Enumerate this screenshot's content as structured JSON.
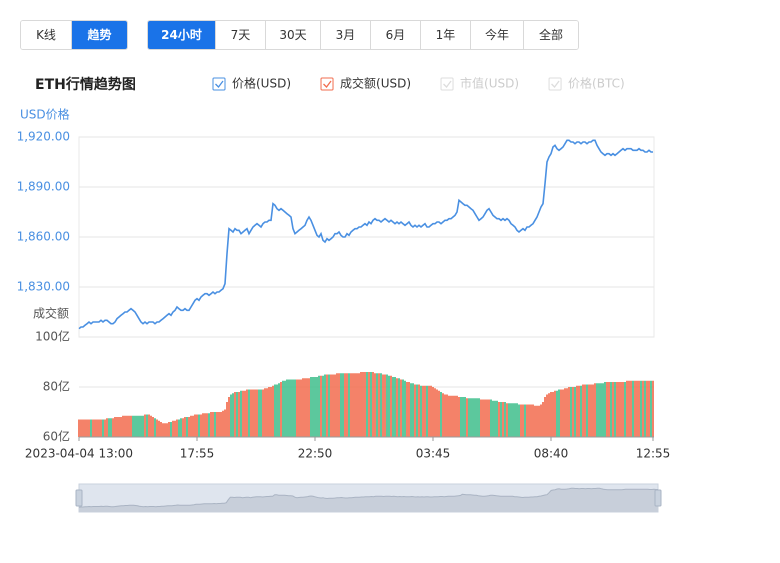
{
  "toolbar": {
    "view_tabs": [
      {
        "label": "K线",
        "active": false
      },
      {
        "label": "趋势",
        "active": true
      }
    ],
    "range_tabs": [
      {
        "label": "24小时",
        "active": true
      },
      {
        "label": "7天",
        "active": false
      },
      {
        "label": "30天",
        "active": false
      },
      {
        "label": "3月",
        "active": false
      },
      {
        "label": "6月",
        "active": false
      },
      {
        "label": "1年",
        "active": false
      },
      {
        "label": "今年",
        "active": false
      },
      {
        "label": "全部",
        "active": false
      }
    ]
  },
  "chart_data": {
    "type": "line",
    "title": "ETH行情趋势图",
    "ylabel": "USD价格",
    "y2label": "成交额",
    "categories": [
      "2023-04-04 13:00",
      null,
      null,
      null,
      null,
      null,
      null,
      null,
      null,
      null,
      null,
      null,
      null,
      null,
      null,
      null,
      null,
      null,
      null,
      null,
      null,
      null,
      null,
      null,
      null,
      null,
      null,
      null,
      null,
      null,
      null,
      null,
      null,
      null,
      null,
      null,
      null,
      null,
      null,
      null,
      null,
      null,
      null,
      null,
      null,
      null,
      null,
      null,
      null,
      null,
      null,
      null,
      null,
      null,
      null,
      null,
      null,
      null,
      null,
      "17:55",
      null,
      null,
      null,
      null,
      null,
      null,
      null,
      null,
      null,
      null,
      null,
      null,
      null,
      null,
      null,
      null,
      null,
      null,
      null,
      null,
      null,
      null,
      null,
      null,
      null,
      null,
      null,
      null,
      null,
      null,
      null,
      null,
      null,
      null,
      null,
      null,
      null,
      null,
      null,
      null,
      null,
      null,
      null,
      null,
      null,
      null,
      null,
      null,
      null,
      null,
      null,
      null,
      null,
      null,
      null,
      null,
      null,
      null,
      "22:50",
      null,
      null,
      null,
      null,
      null,
      null,
      null,
      null,
      null,
      null,
      null,
      null,
      null,
      null,
      null,
      null,
      null,
      null,
      null,
      null,
      null,
      null,
      null,
      null,
      null,
      null,
      null,
      null,
      null,
      null,
      null,
      null,
      null,
      null,
      null,
      null,
      null,
      null,
      null,
      null,
      null,
      null,
      null,
      null,
      null,
      null,
      null,
      null,
      null,
      null,
      null,
      null,
      null,
      null,
      null,
      null,
      null,
      null,
      "03:45",
      null,
      null,
      null,
      null,
      null,
      null,
      null,
      null,
      null,
      null,
      null,
      null,
      null,
      null,
      null,
      null,
      null,
      null,
      null,
      null,
      null,
      null,
      null,
      null,
      null,
      null,
      null,
      null,
      null,
      null,
      null,
      null,
      null,
      null,
      null,
      null,
      null,
      null,
      null,
      null,
      null,
      null,
      null,
      null,
      null,
      null,
      null,
      null,
      null,
      null,
      null,
      null,
      null,
      null,
      null,
      null,
      null,
      null,
      "08:40",
      null,
      null,
      null,
      null,
      null,
      null,
      null,
      null,
      null,
      null,
      null,
      null,
      null,
      null,
      null,
      null,
      null,
      null,
      null,
      null,
      null,
      null,
      null,
      null,
      null,
      null,
      null,
      null,
      null,
      null,
      null,
      null,
      null,
      null,
      null,
      null,
      null,
      null,
      null,
      null,
      null,
      null,
      null,
      null,
      null,
      null,
      null,
      null,
      null,
      null,
      "12:55"
    ],
    "series": [
      {
        "name": "价格(USD)",
        "color": "#4a90e2",
        "checked": true,
        "values": [
          1805,
          1806,
          1806,
          1807,
          1808,
          1809,
          1808,
          1809,
          1809,
          1809,
          1809,
          1810,
          1809,
          1810,
          1810,
          1809,
          1808,
          1808,
          1809,
          1811,
          1812,
          1813,
          1814,
          1815,
          1815,
          1816,
          1817,
          1816,
          1815,
          1813,
          1811,
          1809,
          1808,
          1809,
          1808,
          1809,
          1809,
          1809,
          1808,
          1809,
          1809,
          1810,
          1811,
          1812,
          1813,
          1814,
          1813,
          1815,
          1816,
          1818,
          1817,
          1816,
          1816,
          1817,
          1816,
          1816,
          1818,
          1820,
          1822,
          1823,
          1822,
          1824,
          1825,
          1826,
          1826,
          1825,
          1826,
          1827,
          1826,
          1827,
          1827,
          1828,
          1829,
          1832,
          1850,
          1865,
          1864,
          1863,
          1865,
          1864,
          1864,
          1862,
          1863,
          1864,
          1865,
          1862,
          1864,
          1866,
          1867,
          1868,
          1867,
          1866,
          1868,
          1869,
          1869,
          1870,
          1870,
          1880,
          1879,
          1877,
          1876,
          1877,
          1876,
          1875,
          1874,
          1873,
          1872,
          1865,
          1862,
          1863,
          1864,
          1865,
          1866,
          1867,
          1870,
          1872,
          1870,
          1867,
          1864,
          1861,
          1860,
          1862,
          1858,
          1857,
          1859,
          1858,
          1859,
          1860,
          1862,
          1862,
          1863,
          1861,
          1860,
          1860,
          1862,
          1861,
          1863,
          1864,
          1865,
          1865,
          1866,
          1866,
          1867,
          1868,
          1867,
          1869,
          1868,
          1870,
          1871,
          1870,
          1870,
          1869,
          1870,
          1871,
          1870,
          1869,
          1870,
          1869,
          1868,
          1869,
          1868,
          1869,
          1868,
          1867,
          1868,
          1869,
          1867,
          1866,
          1867,
          1866,
          1867,
          1866,
          1867,
          1868,
          1866,
          1866,
          1867,
          1868,
          1868,
          1869,
          1869,
          1868,
          1869,
          1870,
          1870,
          1871,
          1871,
          1872,
          1873,
          1875,
          1882,
          1881,
          1880,
          1879,
          1879,
          1878,
          1877,
          1876,
          1874,
          1872,
          1870,
          1871,
          1872,
          1874,
          1876,
          1877,
          1875,
          1873,
          1872,
          1871,
          1871,
          1870,
          1871,
          1870,
          1871,
          1870,
          1868,
          1867,
          1866,
          1864,
          1863,
          1864,
          1865,
          1864,
          1866,
          1866,
          1867,
          1868,
          1870,
          1872,
          1875,
          1878,
          1880,
          1892,
          1905,
          1908,
          1910,
          1914,
          1915,
          1913,
          1912,
          1913,
          1914,
          1916,
          1918,
          1918,
          1917,
          1917,
          1916,
          1917,
          1917,
          1916,
          1917,
          1917,
          1916,
          1917,
          1917,
          1918,
          1918,
          1915,
          1913,
          1911,
          1910,
          1909,
          1910,
          1910,
          1909,
          1910,
          1909,
          1910,
          1911,
          1912,
          1913,
          1912,
          1913,
          1913,
          1913,
          1912,
          1912,
          1912,
          1913,
          1912,
          1912,
          1911,
          1911,
          1912,
          1911,
          1911
        ]
      },
      {
        "name": "成交额(USD)",
        "type": "bar",
        "axis": "y2",
        "color": "#f26d4f",
        "up_color": "#f26d4f",
        "down_color": "#3fbf8c",
        "checked": true,
        "values": [
          67,
          67,
          67,
          67,
          67,
          67,
          67,
          67,
          67,
          67,
          67,
          67,
          67,
          67,
          67.5,
          67.5,
          67.5,
          67.5,
          68,
          68,
          68,
          68,
          68.5,
          68.5,
          68.5,
          68.5,
          68.5,
          68.5,
          68.5,
          68.5,
          68.5,
          68.5,
          68.5,
          69,
          69,
          69,
          68.5,
          68,
          67.5,
          67,
          66.5,
          66,
          65.5,
          65.5,
          65.5,
          66,
          66,
          66.5,
          66.5,
          67,
          67,
          67.5,
          67.5,
          68,
          68,
          68,
          68.5,
          68.5,
          69,
          69,
          69,
          69,
          69.5,
          69.5,
          69.5,
          69.5,
          70,
          70,
          70,
          70,
          70,
          70,
          70.5,
          71,
          74,
          76,
          77,
          77.5,
          78,
          78,
          78,
          78.5,
          78.5,
          78.5,
          79,
          79,
          79,
          79,
          79,
          79,
          79,
          79,
          79,
          79.5,
          79.5,
          80,
          80,
          80.5,
          81,
          81,
          81.5,
          82,
          82.5,
          82.5,
          83,
          83,
          83,
          83,
          83,
          83,
          83,
          83,
          83.5,
          83.5,
          83.5,
          83.5,
          84,
          84,
          84,
          84,
          84.5,
          84.5,
          84.5,
          85,
          85,
          85,
          85,
          85,
          85,
          85.5,
          85.5,
          85.5,
          85.5,
          85.5,
          85.5,
          85.5,
          85.5,
          85.5,
          85.5,
          85.5,
          85.5,
          86,
          86,
          86,
          86,
          86,
          86,
          86,
          85.5,
          85.5,
          85.5,
          85.5,
          85,
          85,
          85,
          84.5,
          84.5,
          84,
          84,
          83.5,
          83.5,
          83,
          83,
          82.5,
          82,
          82,
          81.5,
          81.5,
          81,
          81,
          81,
          80.5,
          80.5,
          80.5,
          80.5,
          80.5,
          80.5,
          80,
          79.5,
          79,
          78.5,
          78,
          77.5,
          77,
          77,
          76.5,
          76.5,
          76.5,
          76.5,
          76.5,
          76,
          76,
          76,
          76,
          75.5,
          75.5,
          75.5,
          75.5,
          75.5,
          75.5,
          75.5,
          75,
          75,
          75,
          75,
          75,
          75,
          74.5,
          74.5,
          74.5,
          74,
          74,
          74,
          74,
          73.5,
          73.5,
          73.5,
          73.5,
          73.5,
          73.5,
          73,
          73,
          73,
          73,
          73,
          73,
          73,
          73,
          72.5,
          72.5,
          72.5,
          73,
          74,
          76,
          77,
          77.5,
          78,
          78,
          78.5,
          78.5,
          79,
          79,
          79,
          79.5,
          79.5,
          80,
          80,
          80,
          80,
          80.5,
          80.5,
          80.5,
          81,
          81,
          81,
          81,
          81,
          81,
          81.5,
          81.5,
          81.5,
          81.5,
          81.5,
          82,
          82,
          82,
          82,
          82,
          82,
          82,
          82,
          82,
          82,
          82,
          82.5,
          82.5,
          82.5,
          82.5,
          82.5,
          82.5,
          82.5,
          82.5,
          82.5,
          82.5,
          82.5,
          82.5,
          82.5,
          82.5
        ]
      }
    ],
    "disabled_series": [
      "市值(USD)",
      "价格(BTC)"
    ],
    "ylim": [
      1800,
      1920
    ],
    "yticks": [
      {
        "value": 1830,
        "label": "1,830.00"
      },
      {
        "value": 1860,
        "label": "1,860.00"
      },
      {
        "value": 1890,
        "label": "1,890.00"
      },
      {
        "value": 1920,
        "label": "1,920.00"
      }
    ],
    "y2lim": [
      60,
      100
    ],
    "y2ticks": [
      {
        "value": 60,
        "label": "60亿"
      },
      {
        "value": 80,
        "label": "80亿"
      },
      {
        "value": 100,
        "label": "100亿"
      }
    ],
    "grid": true
  }
}
